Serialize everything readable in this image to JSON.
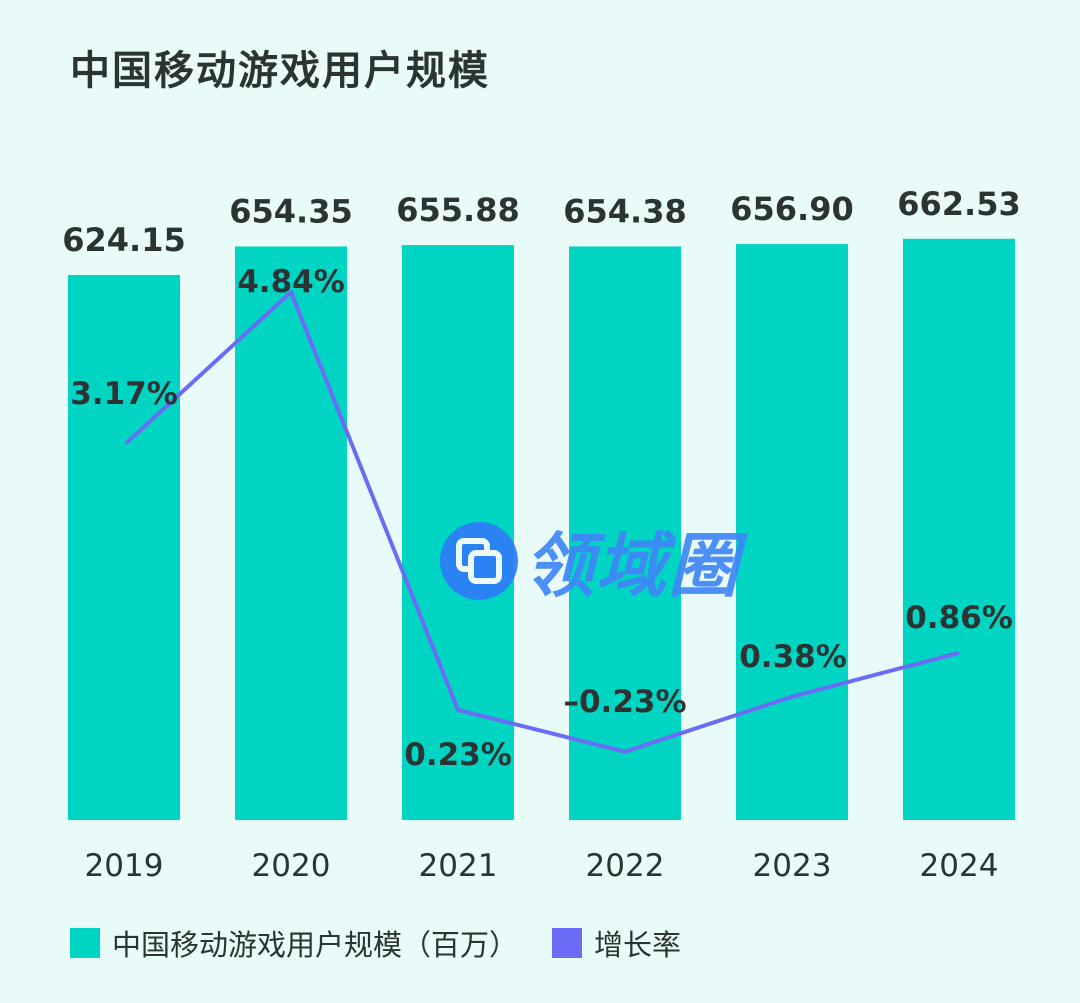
{
  "chart_data": {
    "type": "bar",
    "title": "中国移动游戏用户规模",
    "categories": [
      "2019",
      "2020",
      "2021",
      "2022",
      "2023",
      "2024"
    ],
    "series": [
      {
        "name": "中国移动游戏用户规模（百万）",
        "type": "bar",
        "values": [
          624.15,
          654.35,
          655.88,
          654.38,
          656.9,
          662.53
        ],
        "labels": [
          "624.15",
          "654.35",
          "655.88",
          "654.38",
          "656.90",
          "662.53"
        ],
        "color": "#00d5c4"
      },
      {
        "name": "增长率",
        "type": "line",
        "values": [
          3.17,
          4.84,
          0.23,
          -0.23,
          0.38,
          0.86
        ],
        "labels": [
          "3.17%",
          "4.84%",
          "0.23%",
          "–0.23%",
          "0.38%",
          "0.86%"
        ],
        "color": "#6a6cf5"
      }
    ],
    "legend": "bottom-left",
    "grid": false
  },
  "watermark": {
    "text": "领域圈",
    "icon": "square-logo-icon"
  },
  "colors": {
    "background": "#e8fbf8",
    "text": "#2b3433"
  }
}
